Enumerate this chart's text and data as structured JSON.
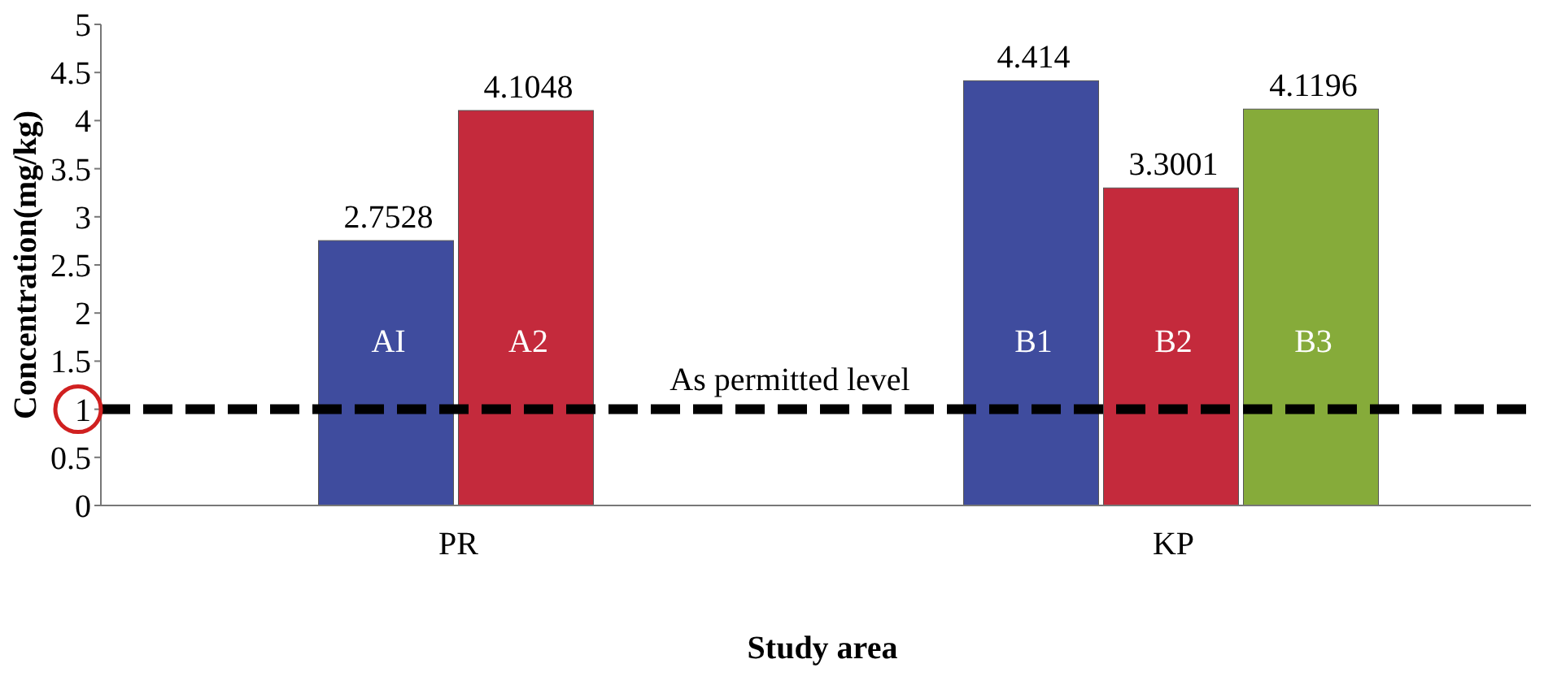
{
  "chart_data": {
    "type": "bar",
    "xlabel": "Study area",
    "ylabel": "Concentration(mg/kg)",
    "categories": [
      "PR",
      "KP"
    ],
    "series": [
      {
        "name": "AI",
        "color": "#3f4c9e",
        "values": [
          2.7528,
          null
        ]
      },
      {
        "name": "A2",
        "color": "#c42a3c",
        "values": [
          4.1048,
          null
        ]
      },
      {
        "name": "B1",
        "color": "#3f4c9e",
        "values": [
          null,
          4.414
        ]
      },
      {
        "name": "B2",
        "color": "#c42a3c",
        "values": [
          null,
          3.3001
        ]
      },
      {
        "name": "B3",
        "color": "#86ab3a",
        "values": [
          null,
          4.1196
        ]
      }
    ],
    "ylim": [
      0,
      5
    ],
    "yticks": [
      0,
      0.5,
      1,
      1.5,
      2,
      2.5,
      3,
      3.5,
      4,
      4.5,
      5
    ],
    "data_labels": true,
    "grid": false,
    "ref_lines": [
      {
        "axis": "y",
        "value": 1,
        "label": "As permitted level",
        "color": "#000000",
        "line_style": "dashed"
      }
    ]
  }
}
